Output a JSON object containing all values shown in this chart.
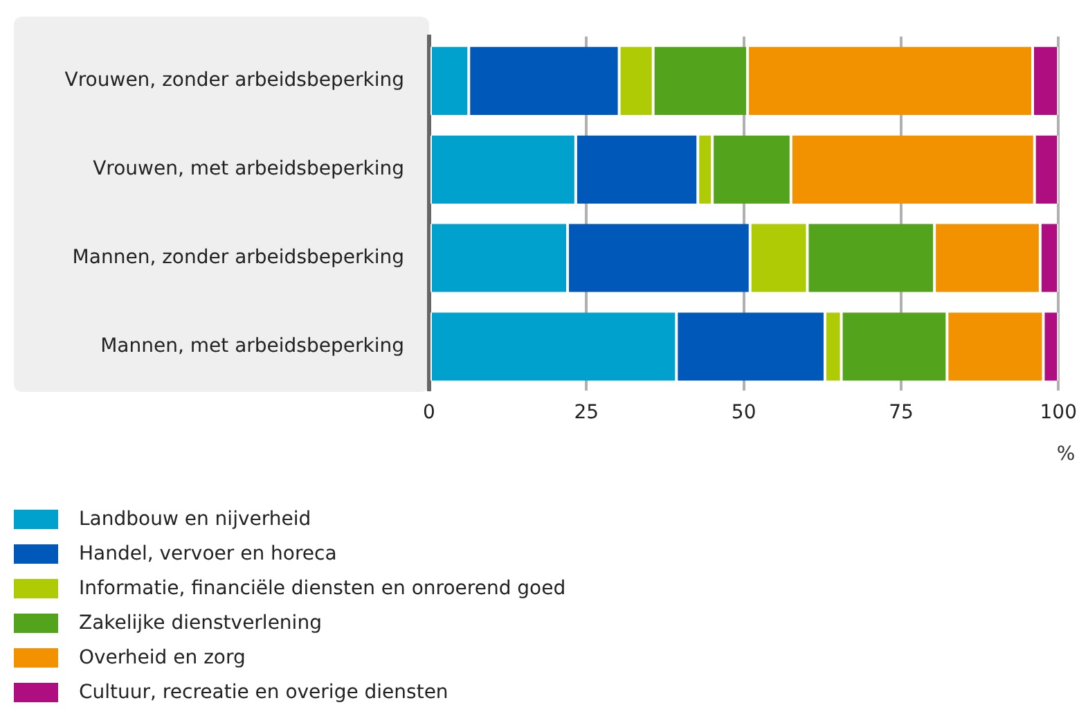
{
  "chart_data": {
    "type": "bar",
    "orientation": "horizontal",
    "stacked": true,
    "xlabel": "%",
    "categories": [
      "Vrouwen, zonder arbeidsbeperking",
      "Vrouwen, met arbeidsbeperking",
      "Mannen, zonder arbeidsbeperking",
      "Mannen, met arbeidsbeperking"
    ],
    "series": [
      {
        "name": "Landbouw en nijverheid",
        "color": "#00a1cd",
        "values": [
          6.3,
          23.3,
          22.0,
          39.3
        ]
      },
      {
        "name": "Handel, vervoer en horeca",
        "color": "#0058b8",
        "values": [
          23.9,
          19.4,
          29.0,
          23.6
        ]
      },
      {
        "name": "Informatie, financiële diensten en onroerend goed",
        "color": "#afcb05",
        "values": [
          5.4,
          2.3,
          9.1,
          2.6
        ]
      },
      {
        "name": "Zakelijke dienstverlening",
        "color": "#53a31d",
        "values": [
          15.0,
          12.5,
          20.2,
          16.8
        ]
      },
      {
        "name": "Overheid en zorg",
        "color": "#f39200",
        "values": [
          45.3,
          38.7,
          16.8,
          15.3
        ]
      },
      {
        "name": "Cultuur, recreatie en overige diensten",
        "color": "#af0e80",
        "values": [
          4.1,
          3.8,
          2.9,
          2.4
        ]
      }
    ],
    "xlim": [
      0,
      100
    ],
    "xticks": [
      0,
      25,
      50,
      75,
      100
    ],
    "grid": "x",
    "legend": "bottom"
  }
}
